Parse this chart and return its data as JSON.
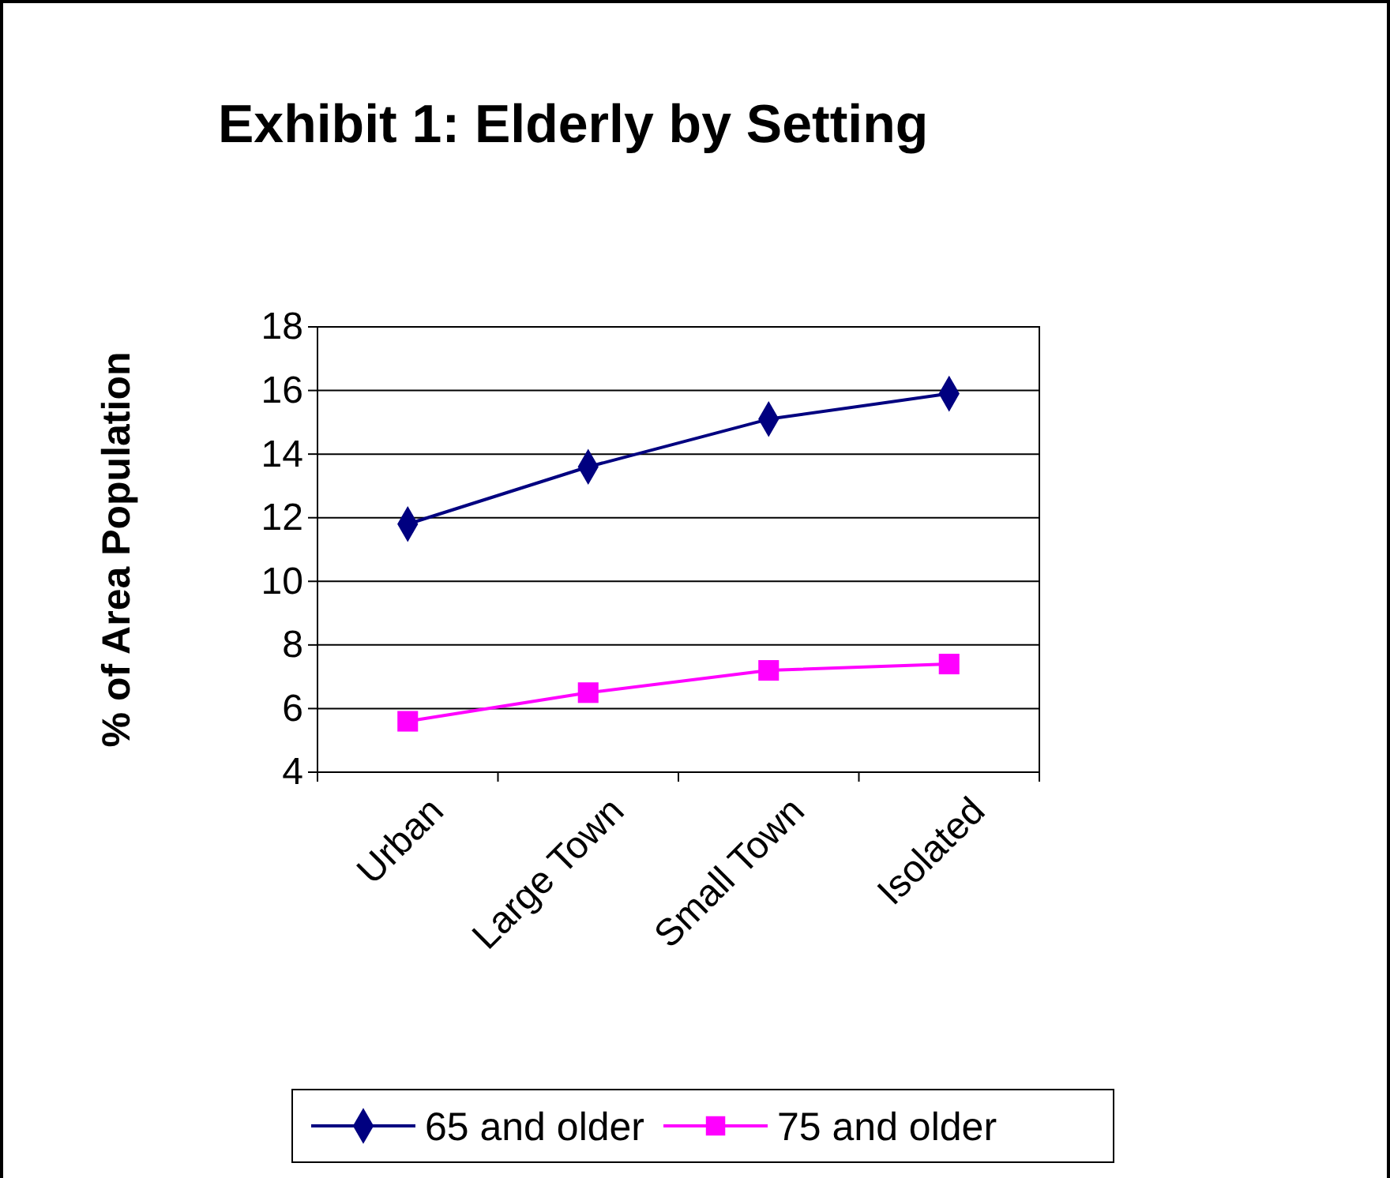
{
  "chart_data": {
    "type": "line",
    "title": "Exhibit 1: Elderly by Setting",
    "ylabel": "% of Area Population",
    "categories": [
      "Urban",
      "Large Town",
      "Small Town",
      "Isolated"
    ],
    "series": [
      {
        "name": "65 and older",
        "color": "#000080",
        "marker": "diamond",
        "values": [
          11.8,
          13.6,
          15.1,
          15.9
        ]
      },
      {
        "name": "75 and older",
        "color": "#ff00ff",
        "marker": "square",
        "values": [
          5.6,
          6.5,
          7.2,
          7.4
        ]
      }
    ],
    "ylim": [
      4,
      18
    ],
    "yticks": [
      4,
      6,
      8,
      10,
      12,
      14,
      16,
      18
    ],
    "grid": "y",
    "legend": "bottom",
    "line_style": "solid"
  }
}
